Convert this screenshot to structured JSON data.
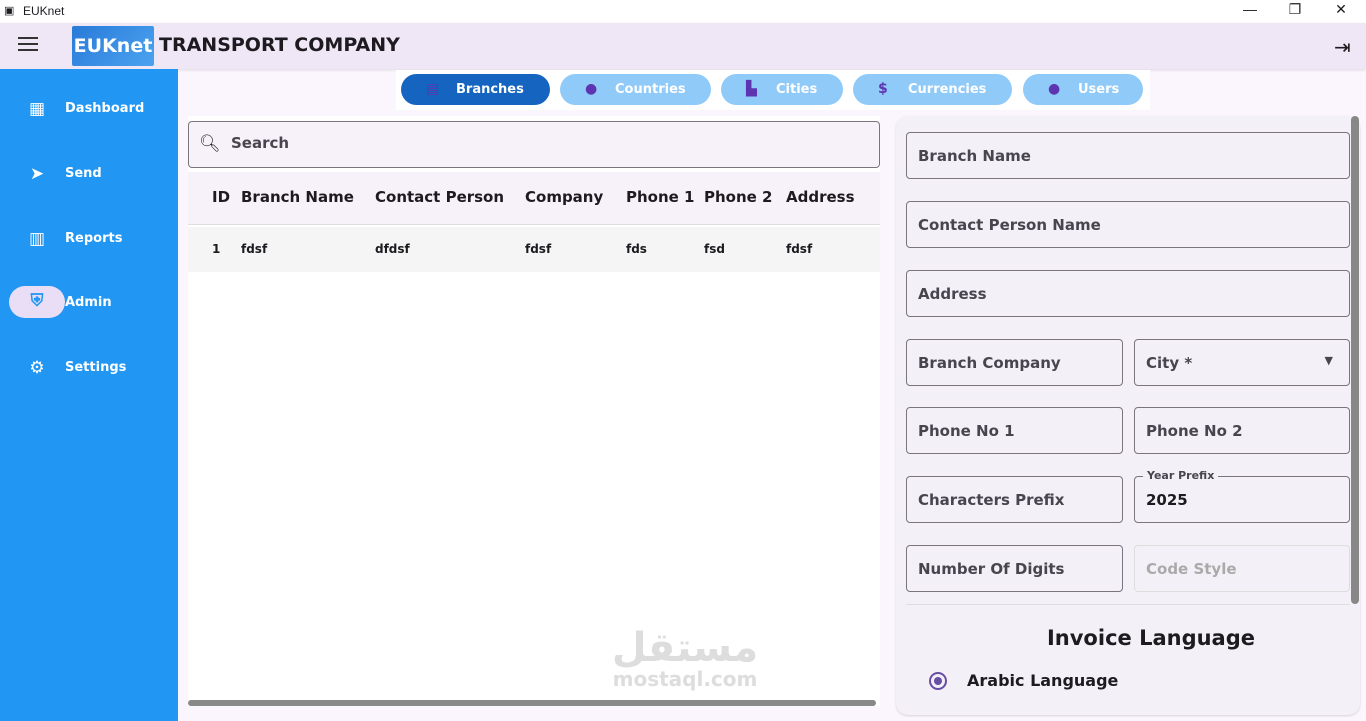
{
  "window": {
    "title": "EUKnet",
    "minimize": "—",
    "maximize": "❐",
    "close": "✕"
  },
  "header": {
    "logo": "EUKnet",
    "company": "TRANSPORT COMPANY"
  },
  "sidebar": {
    "items": [
      {
        "label": "Dashboard",
        "icon": "dashboard-icon"
      },
      {
        "label": "Send",
        "icon": "send-icon"
      },
      {
        "label": "Reports",
        "icon": "reports-icon"
      },
      {
        "label": "Admin",
        "icon": "admin-shield-icon",
        "active": true
      },
      {
        "label": "Settings",
        "icon": "gear-icon"
      }
    ]
  },
  "tabs": [
    {
      "label": "Branches",
      "active": true
    },
    {
      "label": "Countries"
    },
    {
      "label": "Cities"
    },
    {
      "label": "Currencies"
    },
    {
      "label": "Users"
    }
  ],
  "table": {
    "search_placeholder": "Search",
    "columns": [
      "ID",
      "Branch Name",
      "Contact Person",
      "Company",
      "Phone 1",
      "Phone 2",
      "Address"
    ],
    "rows": [
      [
        "1",
        "fdsf",
        "dfdsf",
        "fdsf",
        "fds",
        "fsd",
        "fdsf"
      ]
    ]
  },
  "form": {
    "branch_name": "Branch Name",
    "contact_person": "Contact Person Name",
    "address": "Address",
    "branch_company": "Branch Company",
    "city": "City *",
    "phone1": "Phone No 1",
    "phone2": "Phone No 2",
    "chars_prefix": "Characters Prefix",
    "year_prefix_label": "Year Prefix",
    "year_prefix_value": "2025",
    "num_digits": "Number Of Digits",
    "code_style": "Code Style",
    "invoice_language_title": "Invoice Language",
    "language_option": "Arabic Language"
  },
  "watermark": {
    "arabic": "مستقل",
    "latin": "mostaql.com"
  },
  "colors": {
    "sidebar": "#2196f3",
    "tab_active": "#1565c0",
    "tab_inactive": "#90caf9",
    "header": "#efe6f6"
  }
}
